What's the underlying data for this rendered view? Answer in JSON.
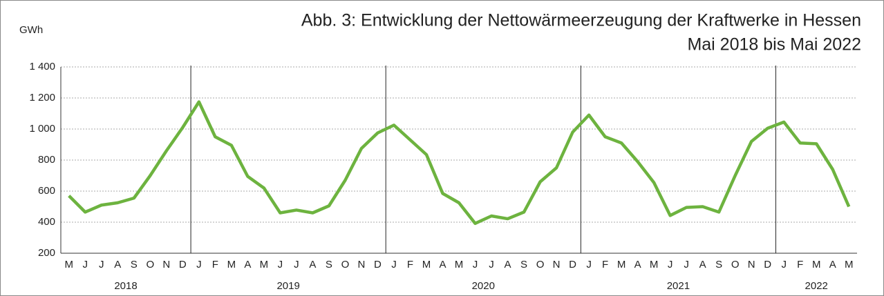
{
  "chart_data": {
    "type": "line",
    "title": [
      "Abb. 3: Entwicklung der Nettowärmeerzeugung der Kraftwerke in Hessen",
      "Mai 2018 bis Mai 2022"
    ],
    "y_label": "GWh",
    "groups": [
      {
        "name": "2018",
        "categories": [
          "M",
          "J",
          "J",
          "A",
          "S",
          "O",
          "N",
          "D"
        ]
      },
      {
        "name": "2019",
        "categories": [
          "J",
          "F",
          "M",
          "A",
          "M",
          "J",
          "J",
          "A",
          "S",
          "O",
          "N",
          "D"
        ]
      },
      {
        "name": "2020",
        "categories": [
          "J",
          "F",
          "M",
          "A",
          "M",
          "J",
          "J",
          "A",
          "S",
          "O",
          "N",
          "D"
        ]
      },
      {
        "name": "2021",
        "categories": [
          "J",
          "F",
          "M",
          "A",
          "M",
          "J",
          "J",
          "A",
          "S",
          "O",
          "N",
          "D"
        ]
      },
      {
        "name": "2022",
        "categories": [
          "J",
          "F",
          "M",
          "A",
          "M"
        ]
      }
    ],
    "series": [
      {
        "color": "#6db33f",
        "values": [
          570,
          465,
          510,
          525,
          555,
          700,
          860,
          1010,
          1175,
          950,
          895,
          695,
          620,
          460,
          478,
          460,
          505,
          670,
          875,
          975,
          1025,
          930,
          835,
          585,
          525,
          392,
          440,
          422,
          465,
          660,
          750,
          980,
          1090,
          950,
          910,
          790,
          655,
          443,
          495,
          500,
          465,
          700,
          920,
          1005,
          1045,
          910,
          905,
          740,
          500
        ]
      }
    ],
    "ylim": [
      200,
      1400
    ],
    "yticks": [
      200,
      400,
      600,
      800,
      {
        "value": 1000,
        "label": "1 000"
      },
      {
        "value": 1200,
        "label": "1 200"
      },
      {
        "value": 1400,
        "label": "1 400"
      }
    ],
    "grid": true
  }
}
